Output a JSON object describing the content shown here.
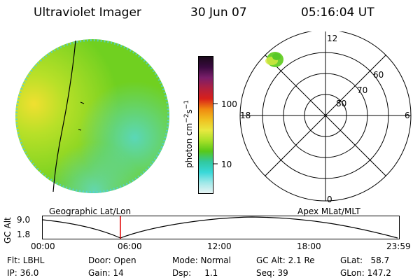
{
  "header": {
    "title": "Ultraviolet Imager",
    "date": "30 Jun 07",
    "time": "05:16:04 UT"
  },
  "colorbar": {
    "label": "photon cm⁻²s⁻¹",
    "label_parts": [
      "photon cm",
      "−2",
      "s",
      "−1"
    ],
    "ticks": [
      "100",
      "10"
    ],
    "colors": [
      "#1a0a1a",
      "#3a0a40",
      "#7a1e6a",
      "#b02040",
      "#d8201a",
      "#f08a10",
      "#f0c020",
      "#e8e840",
      "#a8e028",
      "#58c818",
      "#30c8a0",
      "#38d8d8",
      "#a0e8e8",
      "#e8f4f4"
    ]
  },
  "polar": {
    "mlt_labels": {
      "top": "12",
      "bottom": "0",
      "left": "18",
      "right": "6"
    },
    "lat_labels": [
      "60",
      "70",
      "80"
    ]
  },
  "altitude": {
    "left_label": "Geographic Lat/Lon",
    "right_label": "Apex MLat/MLT",
    "axis_title": "GC Alt",
    "y_ticks": [
      "9.0",
      "1.8"
    ],
    "x_ticks": [
      "00:00",
      "06:00",
      "12:00",
      "18:00",
      "23:59"
    ]
  },
  "status": {
    "filter": "Flt: LBHL",
    "ip": "IP: 36.0",
    "door": "Door: Open",
    "gain": "Gain: 14",
    "mode": "Mode: Normal",
    "dsp": "Dsp:     1.1",
    "gc_alt": "GC Alt: 2.1 Re",
    "seq": "Seq: 39",
    "glat": "GLat:   58.7",
    "glon": "GLon: 147.2"
  }
}
